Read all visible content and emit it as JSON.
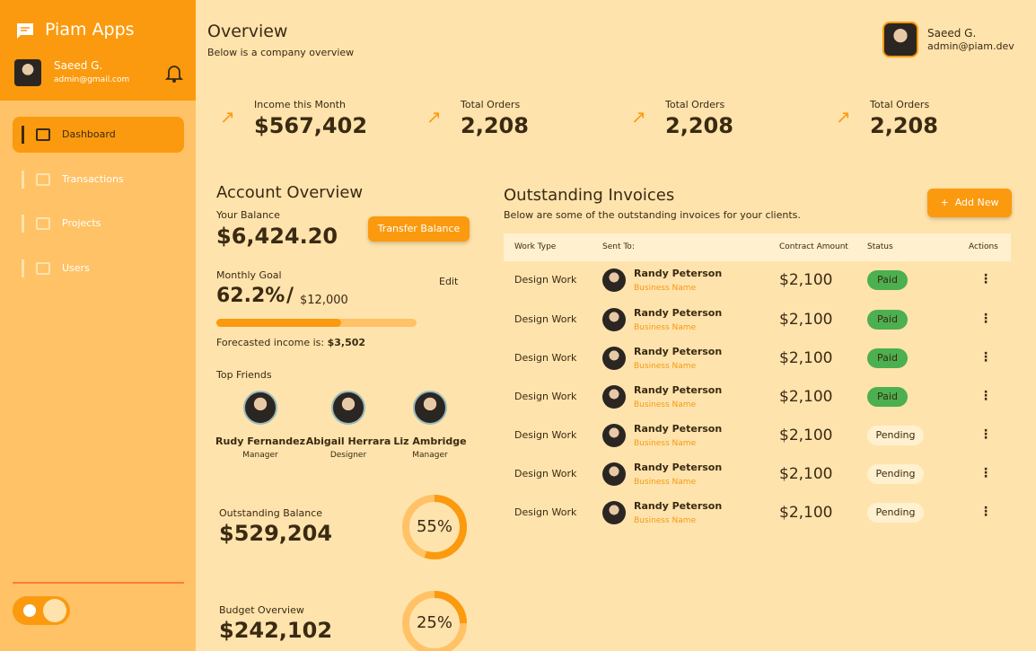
{
  "sidebar": {
    "brand": "Piam Apps",
    "user_name": "Saeed G.",
    "user_email": "admin@gmail.com",
    "nav": [
      "Dashboard",
      "Transactions",
      "Projects",
      "Users"
    ]
  },
  "header": {
    "title": "Overview",
    "subtitle": "Below is a company overview",
    "user_name": "Saeed G.",
    "user_email": "admin@piam.dev"
  },
  "stats": [
    {
      "label": "Income this Month",
      "value": "$567,402"
    },
    {
      "label": "Total Orders",
      "value": "2,208"
    },
    {
      "label": "Total Orders",
      "value": "2,208"
    },
    {
      "label": "Total Orders",
      "value": "2,208"
    }
  ],
  "account": {
    "title": "Account Overview",
    "balance_label": "Your Balance",
    "balance": "$6,424.20",
    "transfer_button": "Transfer Balance",
    "goal_label": "Monthly Goal",
    "goal_percent": {
      "value": 62.2,
      "label": "62.2%"
    },
    "goal_separator": "/",
    "goal_amount": "$12,000",
    "edit": "Edit",
    "forecast_label": "Forecasted income is:",
    "forecast_value": "$3,502",
    "friends_title": "Top Friends",
    "friends": [
      {
        "name": "Rudy Fernandez",
        "role": "Manager"
      },
      {
        "name": "Abigail Herrara",
        "role": "Designer"
      },
      {
        "name": "Liz Ambridge",
        "role": "Manager"
      }
    ],
    "outstanding_label": "Outstanding Balance",
    "outstanding_value": "$529,204",
    "outstanding_percent": {
      "value": 55,
      "label": "55%"
    },
    "budget_label": "Budget Overview",
    "budget_value": "$242,102",
    "budget_percent": {
      "value": 25,
      "label": "25%"
    }
  },
  "invoices": {
    "title": "Outstanding Invoices",
    "subtitle": "Below are some of the outstanding invoices for your clients.",
    "add_button": "Add New",
    "columns": [
      "Work Type",
      "Sent To:",
      "Contract Amount",
      "Status",
      "Actions"
    ],
    "rows": [
      {
        "work_type": "Design Work",
        "name": "Randy Peterson",
        "company": "Business Name",
        "amount": "$2,100",
        "status": "Paid"
      },
      {
        "work_type": "Design Work",
        "name": "Randy Peterson",
        "company": "Business Name",
        "amount": "$2,100",
        "status": "Paid"
      },
      {
        "work_type": "Design Work",
        "name": "Randy Peterson",
        "company": "Business Name",
        "amount": "$2,100",
        "status": "Paid"
      },
      {
        "work_type": "Design Work",
        "name": "Randy Peterson",
        "company": "Business Name",
        "amount": "$2,100",
        "status": "Paid"
      },
      {
        "work_type": "Design Work",
        "name": "Randy Peterson",
        "company": "Business Name",
        "amount": "$2,100",
        "status": "Pending"
      },
      {
        "work_type": "Design Work",
        "name": "Randy Peterson",
        "company": "Business Name",
        "amount": "$2,100",
        "status": "Pending"
      },
      {
        "work_type": "Design Work",
        "name": "Randy Peterson",
        "company": "Business Name",
        "amount": "$2,100",
        "status": "Pending"
      }
    ]
  }
}
